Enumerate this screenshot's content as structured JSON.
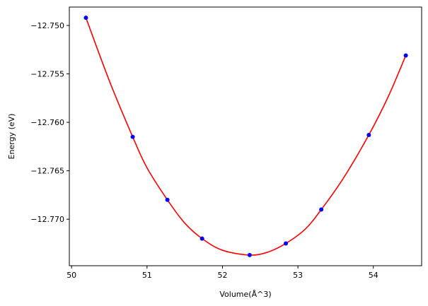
{
  "chart_data": {
    "type": "scatter",
    "xlabel": "Volume(Å^3)",
    "ylabel": "Energy (eV)",
    "xlim": [
      49.97,
      54.64
    ],
    "ylim": [
      -12.7748,
      -12.7481
    ],
    "x_ticks": [
      50,
      51,
      52,
      53,
      54
    ],
    "x_tick_labels": [
      "50",
      "51",
      "52",
      "53",
      "54"
    ],
    "y_ticks": [
      -12.75,
      -12.755,
      -12.76,
      -12.765,
      -12.77
    ],
    "y_tick_labels": [
      "−12.750",
      "−12.755",
      "−12.760",
      "−12.765",
      "−12.770"
    ],
    "grid": false,
    "series": [
      {
        "kind": "points",
        "color": "#0000ff",
        "x": [
          50.19,
          50.81,
          51.27,
          51.73,
          52.36,
          52.84,
          53.31,
          53.94,
          54.43
        ],
        "y": [
          -12.7492,
          -12.7615,
          -12.768,
          -12.772,
          -12.7737,
          -12.7725,
          -12.769,
          -12.7613,
          -12.7531
        ]
      },
      {
        "kind": "fit-curve",
        "color": "#ff0000",
        "x": [
          50.19,
          50.5,
          50.81,
          51.0,
          51.27,
          51.5,
          51.73,
          52.0,
          52.36,
          52.6,
          52.84,
          53.1,
          53.31,
          53.6,
          53.94,
          54.2,
          54.43
        ],
        "y": [
          -12.7492,
          -12.7557,
          -12.7615,
          -12.7647,
          -12.768,
          -12.7704,
          -12.772,
          -12.7732,
          -12.7737,
          -12.7734,
          -12.7725,
          -12.771,
          -12.769,
          -12.7658,
          -12.7613,
          -12.7573,
          -12.7531
        ]
      }
    ]
  }
}
